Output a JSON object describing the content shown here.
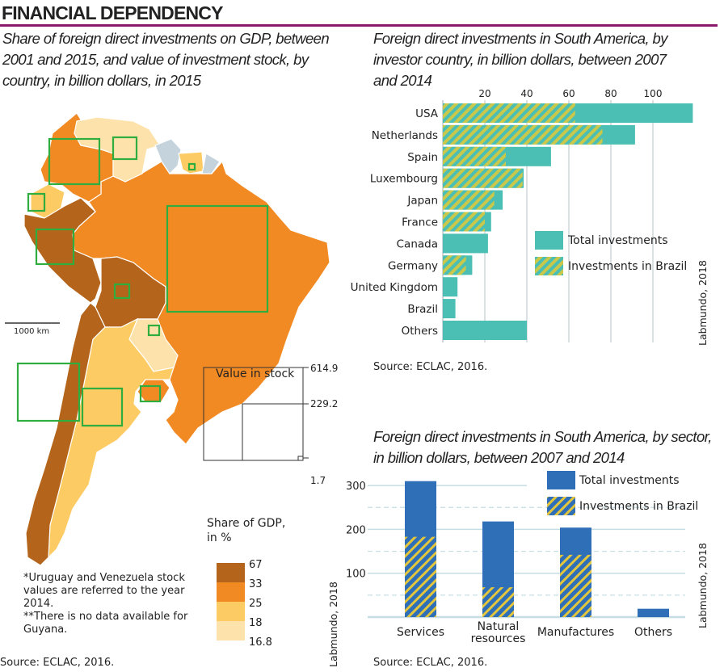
{
  "header": {
    "title": "FINANCIAL DEPENDENCY",
    "map_subtitle": "Share of foreign direct investments on GDP, between 2001 and 2015, and value of investment stock, by country, in billion dollars, in 2015",
    "country_chart_subtitle": "Foreign direct investments in South America, by investor country, in billion dollars, between 2007 and 2014",
    "sector_chart_subtitle": "Foreign direct investments in South America, by sector, in billion dollars, between 2007 and 2014"
  },
  "map": {
    "scale_label": "1000 km",
    "stock_legend": {
      "title": "Value in stock",
      "values": [
        "614.9",
        "229.2",
        "1.7"
      ]
    },
    "gdp_legend": {
      "title": "Share of GDP, in %",
      "breaks": [
        "67",
        "33",
        "25",
        "18",
        "16.8"
      ],
      "colors": [
        "#b4651b",
        "#f28a24",
        "#fccb63",
        "#fde3ab"
      ]
    },
    "no_data_color": "#c5d3dc",
    "notes": [
      "*Uruguay and Venezuela stock values are referred to the year 2014.",
      "**There is no data available for Guyana."
    ],
    "source": "Source: ECLAC, 2016.",
    "credit": "Labmundo, 2018"
  },
  "chart_data": [
    {
      "type": "bar",
      "orientation": "horizontal",
      "title": "Foreign direct investments in South America, by investor country, in billion dollars, between 2007 and 2014",
      "categories": [
        "USA",
        "Netherlands",
        "Spain",
        "Luxembourg",
        "Japan",
        "France",
        "Canada",
        "Germany",
        "United Kingdom",
        "Brazil",
        "Others"
      ],
      "series": [
        {
          "name": "Total investments",
          "color": "#4bbfb4",
          "values": [
            119,
            91.5,
            51.5,
            38.5,
            28.5,
            23,
            21.5,
            14,
            7,
            6,
            40
          ]
        },
        {
          "name": "Investments in Brazil",
          "color": "#c9c84a",
          "values": [
            63,
            76,
            30,
            38,
            24.5,
            20,
            0,
            11,
            0,
            0,
            0
          ]
        }
      ],
      "xticks": [
        "20",
        "40",
        "60",
        "80",
        "100"
      ],
      "xlim": [
        0,
        120
      ],
      "grid": true,
      "legend": "middle-right",
      "source": "Source: ECLAC, 2016.",
      "credit": "Labmundo, 2018"
    },
    {
      "type": "bar",
      "orientation": "vertical",
      "title": "Foreign direct investments in South America, by sector, in billion dollars, between 2007 and 2014",
      "categories": [
        "Services",
        "Natural resources",
        "Manufactures",
        "Others"
      ],
      "series": [
        {
          "name": "Total investments",
          "color": "#2f6fb8",
          "values": [
            310,
            218,
            204,
            19
          ]
        },
        {
          "name": "Investments in Brazil",
          "color": "#e3c63c",
          "values": [
            183,
            68,
            142,
            0
          ]
        }
      ],
      "yticks": [
        "100",
        "200",
        "300"
      ],
      "ylim": [
        0,
        320
      ],
      "grid": true,
      "legend": "top-right",
      "source": "Source: ECLAC, 2016.",
      "credit": "Labmundo, 2018"
    }
  ]
}
